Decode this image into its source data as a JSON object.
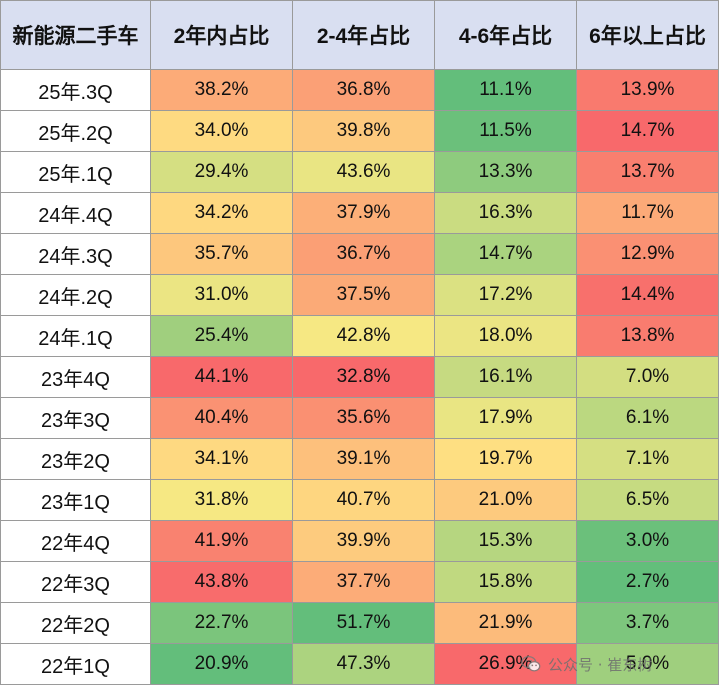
{
  "chart_data": {
    "type": "heatmap",
    "header": [
      "新能源二手车",
      "2年内占比",
      "2-4年占比",
      "4-6年占比",
      "6年以上占比"
    ],
    "rows": [
      {
        "label": "25年.3Q",
        "values": [
          "38.2%",
          "36.8%",
          "11.1%",
          "13.9%"
        ]
      },
      {
        "label": "25年.2Q",
        "values": [
          "34.0%",
          "39.8%",
          "11.5%",
          "14.7%"
        ]
      },
      {
        "label": "25年.1Q",
        "values": [
          "29.4%",
          "43.6%",
          "13.3%",
          "13.7%"
        ]
      },
      {
        "label": "24年.4Q",
        "values": [
          "34.2%",
          "37.9%",
          "16.3%",
          "11.7%"
        ]
      },
      {
        "label": "24年.3Q",
        "values": [
          "35.7%",
          "36.7%",
          "14.7%",
          "12.9%"
        ]
      },
      {
        "label": "24年.2Q",
        "values": [
          "31.0%",
          "37.5%",
          "17.2%",
          "14.4%"
        ]
      },
      {
        "label": "24年.1Q",
        "values": [
          "25.4%",
          "42.8%",
          "18.0%",
          "13.8%"
        ]
      },
      {
        "label": "23年4Q",
        "values": [
          "44.1%",
          "32.8%",
          "16.1%",
          "7.0%"
        ]
      },
      {
        "label": "23年3Q",
        "values": [
          "40.4%",
          "35.6%",
          "17.9%",
          "6.1%"
        ]
      },
      {
        "label": "23年2Q",
        "values": [
          "34.1%",
          "39.1%",
          "19.7%",
          "7.1%"
        ]
      },
      {
        "label": "23年1Q",
        "values": [
          "31.8%",
          "40.7%",
          "21.0%",
          "6.5%"
        ]
      },
      {
        "label": "22年4Q",
        "values": [
          "41.9%",
          "39.9%",
          "15.3%",
          "3.0%"
        ]
      },
      {
        "label": "22年3Q",
        "values": [
          "43.8%",
          "37.7%",
          "15.8%",
          "2.7%"
        ]
      },
      {
        "label": "22年2Q",
        "values": [
          "22.7%",
          "51.7%",
          "21.9%",
          "3.7%"
        ]
      },
      {
        "label": "22年1Q",
        "values": [
          "20.9%",
          "47.3%",
          "26.9%",
          "5.0%"
        ]
      }
    ],
    "color_scale": {
      "low": "#63be7b",
      "mid": "#ffeb84",
      "high": "#f8696b",
      "per_column": true,
      "reversed_columns": [
        1
      ]
    },
    "header_background": "#d9dff1",
    "grid": true
  },
  "watermark": {
    "text": "公众号 · 崔东树",
    "icon": "wechat-icon"
  }
}
